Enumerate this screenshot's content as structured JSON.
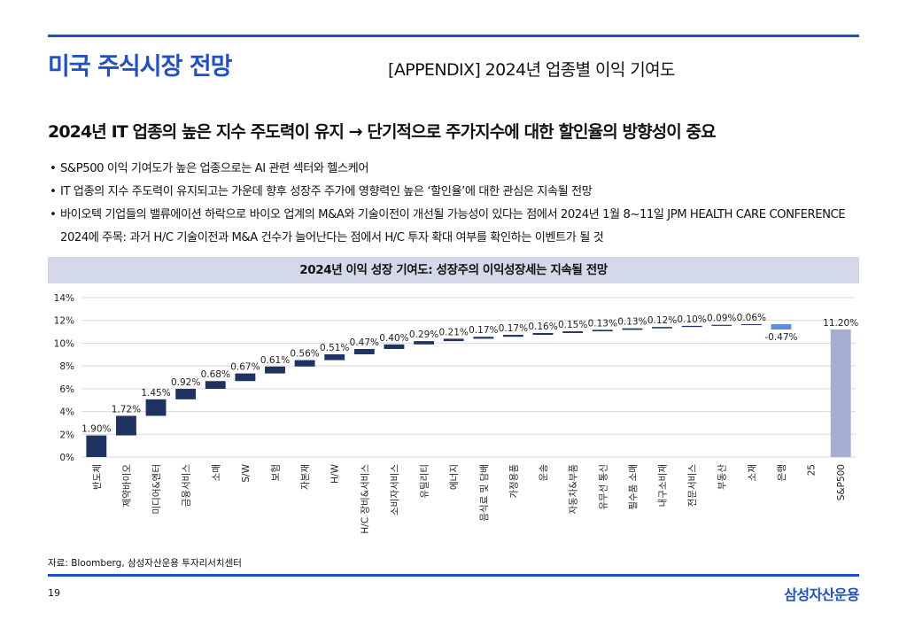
{
  "header": {
    "title": "미국 주식시장 전망",
    "appendix": "[APPENDIX] 2024년 업종별 이익 기여도"
  },
  "subtitle": "2024년 IT 업종의 높은 지수 주도력이 유지 → 단기적으로 주가지수에 대한 할인율의 방향성이 중요",
  "bullets": [
    "S&P500 이익 기여도가 높은 업종으로는 AI 관련 섹터와 헬스케어",
    "IT 업종의 지수 주도력이 유지되고는 가운데 향후 성장주 주가에 영향력인 높은 ‘할인율’에 대한 관심은 지속될 전망",
    "바이오텍 기업들의 밸류에이션 하락으로 바이오 업계의 M&A와 기술이전이 개선될 가능성이 있다는 점에서 2024년 1월 8~11일 JPM HEALTH CARE CONFERENCE 2024에 주목: 과거 H/C 기술이전과 M&A 건수가 늘어난다는 점에서 H/C 투자 확대 여부를 확인하는 이벤트가 될 것"
  ],
  "chart_header": "2024년 이익 성장 기여도: 성장주의 이익성장세는 지속될 전망",
  "chart_data": {
    "type": "waterfall",
    "title": "2024년 이익 성장 기여도: 성장주의 이익성장세는 지속될 전망",
    "ylim": [
      0,
      14
    ],
    "yticks": [
      "0%",
      "2%",
      "4%",
      "6%",
      "8%",
      "10%",
      "12%",
      "14%"
    ],
    "categories": [
      "반도체",
      "제약바이오",
      "미디어&엔터",
      "금융서비스",
      "소매",
      "S/W",
      "보험",
      "자본재",
      "H/W",
      "H/C 장비&서비스",
      "소비자서비스",
      "유틸리티",
      "에너지",
      "음식료 및 담배",
      "가정용품",
      "운송",
      "자동차&부품",
      "유무선 통신",
      "필수품 소매",
      "내구소비재",
      "전문서비스",
      "부동산",
      "소재",
      "은행",
      "25",
      "S&P500"
    ],
    "values": [
      1.9,
      1.72,
      1.45,
      0.92,
      0.68,
      0.67,
      0.61,
      0.56,
      0.51,
      0.47,
      0.4,
      0.29,
      0.21,
      0.17,
      0.17,
      0.16,
      0.15,
      0.13,
      0.13,
      0.12,
      0.1,
      0.09,
      0.06,
      -0.47,
      null,
      11.2
    ],
    "labels": [
      "1.90%",
      "1.72%",
      "1.45%",
      "0.92%",
      "0.68%",
      "0.67%",
      "0.61%",
      "0.56%",
      "0.51%",
      "0.47%",
      "0.40%",
      "0.29%",
      "0.21%",
      "0.17%",
      "0.17%",
      "0.16%",
      "0.15%",
      "0.13%",
      "0.13%",
      "0.12%",
      "0.10%",
      "0.09%",
      "0.06%",
      "-0.47%",
      "",
      "11.20%"
    ],
    "total_index": 25,
    "colors": {
      "positive": "#1f3363",
      "negative": "#5b8de0",
      "total": "#a3aed0",
      "grid": "#d9d9d9"
    }
  },
  "footer": {
    "source": "자료: Bloomberg, 삼성자산운용 투자리서치센터",
    "page": "19",
    "brand": "삼성자산운용"
  }
}
